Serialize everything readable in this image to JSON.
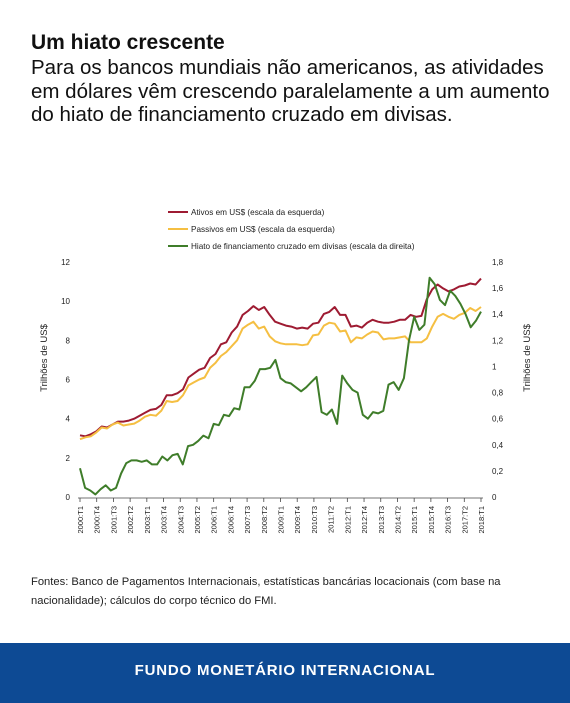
{
  "header": {
    "title": "Um hiato crescente",
    "subtitle": "Para os bancos mundiais não americanos, as atividades em dólares vêm crescendo paralelamente a um aumento do hiato de financiamento cruzado em divisas."
  },
  "source": "Fontes: Banco de Pagamentos Internacionais, estatísticas bancárias locacionais (com base na nacionalidade); cálculos do corpo técnico do FMI.",
  "footer": {
    "label": "FUNDO MONETÁRIO INTERNACIONAL"
  },
  "colors": {
    "assets": "#9e1b32",
    "liabilities": "#f5bf42",
    "gap": "#3f7d2a",
    "footer_bg": "#0d4a94"
  },
  "chart_data": {
    "type": "line",
    "ylabel_left": "Trilhões de US$",
    "ylabel_right": "Trilhões de US$",
    "ylim_left": [
      0,
      12
    ],
    "ylim_right": [
      0,
      1.8
    ],
    "yticks_left": [
      "0",
      "2",
      "4",
      "6",
      "8",
      "10",
      "12"
    ],
    "yticks_right": [
      "0",
      "0,2",
      "0,4",
      "0,6",
      "0,8",
      "1",
      "1,2",
      "1,4",
      "1,6",
      "1,8"
    ],
    "xticks": [
      "2000:T1",
      "2000:T4",
      "2001:T3",
      "2002:T2",
      "2003:T1",
      "2003:T4",
      "2004:T3",
      "2005:T2",
      "2006:T1",
      "2006:T4",
      "2007:T3",
      "2008:T2",
      "2009:T1",
      "2009:T4",
      "2010:T3",
      "2011:T2",
      "2012:T1",
      "2012:T4",
      "2013:T3",
      "2014:T2",
      "2015:T1",
      "2015:T4",
      "2016:T3",
      "2017:T2",
      "2018:T1"
    ],
    "legend_position": "top",
    "grid": false,
    "series": [
      {
        "name": "Ativos em US$ (escala da esquerda)",
        "axis": "left",
        "values": [
          3.15,
          3.1,
          3.2,
          3.35,
          3.6,
          3.55,
          3.7,
          3.85,
          3.85,
          3.9,
          4.0,
          4.15,
          4.3,
          4.45,
          4.5,
          4.7,
          5.2,
          5.2,
          5.3,
          5.5,
          6.1,
          6.3,
          6.5,
          6.6,
          7.1,
          7.3,
          7.8,
          7.9,
          8.4,
          8.7,
          9.3,
          9.5,
          9.75,
          9.55,
          9.7,
          9.3,
          8.95,
          8.85,
          8.75,
          8.7,
          8.6,
          8.65,
          8.6,
          8.85,
          8.9,
          9.35,
          9.45,
          9.7,
          9.3,
          9.3,
          8.7,
          8.75,
          8.65,
          8.9,
          9.05,
          8.95,
          8.9,
          8.9,
          8.95,
          9.05,
          9.05,
          9.3,
          9.2,
          9.25,
          10.1,
          10.6,
          10.85,
          10.65,
          10.5,
          10.6,
          10.75,
          10.8,
          10.9,
          10.85,
          11.15
        ]
      },
      {
        "name": "Passivos em US$ (escala da esquerda)",
        "axis": "left",
        "values": [
          2.95,
          3.05,
          3.1,
          3.3,
          3.55,
          3.5,
          3.7,
          3.8,
          3.65,
          3.7,
          3.75,
          3.9,
          4.1,
          4.2,
          4.15,
          4.4,
          4.9,
          4.85,
          4.9,
          5.2,
          5.7,
          5.85,
          6.0,
          6.1,
          6.6,
          6.85,
          7.2,
          7.4,
          7.7,
          8.0,
          8.6,
          8.8,
          8.95,
          8.6,
          8.7,
          8.2,
          7.95,
          7.85,
          7.8,
          7.8,
          7.8,
          7.75,
          7.8,
          8.25,
          8.3,
          8.75,
          8.9,
          8.85,
          8.45,
          8.5,
          7.9,
          8.15,
          8.1,
          8.3,
          8.45,
          8.4,
          8.05,
          8.1,
          8.1,
          8.15,
          8.2,
          7.9,
          7.9,
          7.9,
          8.1,
          8.7,
          9.2,
          9.35,
          9.2,
          9.1,
          9.3,
          9.4,
          9.65,
          9.5,
          9.7
        ]
      },
      {
        "name": "Hiato de financiamento cruzado em divisas (escala da direita)",
        "axis": "right",
        "values": [
          0.22,
          0.07,
          0.05,
          0.02,
          0.06,
          0.09,
          0.05,
          0.07,
          0.18,
          0.26,
          0.28,
          0.28,
          0.27,
          0.28,
          0.25,
          0.25,
          0.31,
          0.28,
          0.32,
          0.33,
          0.25,
          0.39,
          0.4,
          0.43,
          0.47,
          0.45,
          0.56,
          0.55,
          0.63,
          0.62,
          0.68,
          0.67,
          0.84,
          0.84,
          0.89,
          0.98,
          0.98,
          0.99,
          1.05,
          0.91,
          0.88,
          0.87,
          0.84,
          0.81,
          0.84,
          0.88,
          0.92,
          0.65,
          0.63,
          0.67,
          0.56,
          0.93,
          0.87,
          0.82,
          0.8,
          0.63,
          0.6,
          0.65,
          0.64,
          0.66,
          0.86,
          0.88,
          0.82,
          0.91,
          1.2,
          1.38,
          1.28,
          1.32,
          1.68,
          1.63,
          1.51,
          1.47,
          1.58,
          1.54,
          1.48,
          1.4,
          1.3,
          1.35,
          1.42
        ]
      }
    ]
  }
}
